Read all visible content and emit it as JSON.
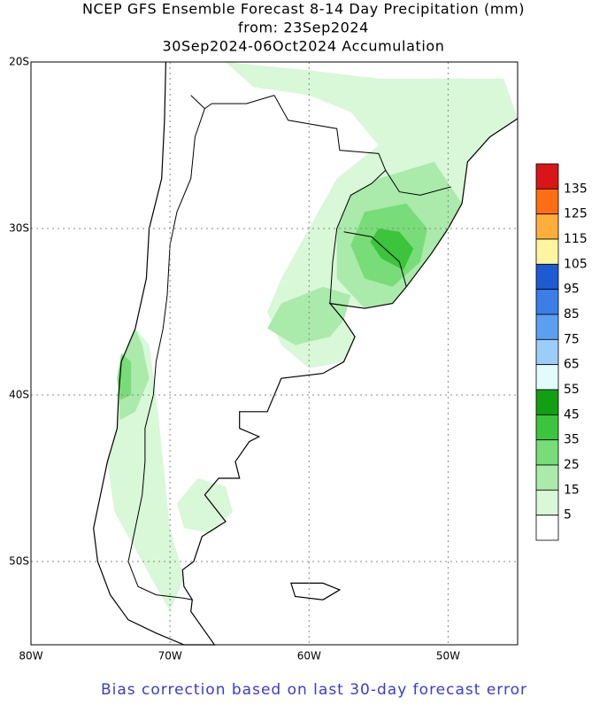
{
  "map": {
    "title_lines": [
      "NCEP GFS Ensemble Forecast 8-14 Day Precipitation (mm)",
      "from: 23Sep2024",
      "30Sep2024-06Oct2024 Accumulation"
    ],
    "lonlim": [
      -80,
      -45
    ],
    "latlim": [
      -55,
      -20
    ],
    "lat_ticks": [
      {
        "value": -20,
        "label": "20S"
      },
      {
        "value": -30,
        "label": "30S"
      },
      {
        "value": -40,
        "label": "40S"
      },
      {
        "value": -50,
        "label": "50S"
      }
    ],
    "lon_ticks": [
      {
        "value": -80,
        "label": "80W"
      },
      {
        "value": -70,
        "label": "70W"
      },
      {
        "value": -60,
        "label": "60W"
      },
      {
        "value": -50,
        "label": "50W"
      }
    ],
    "grid": true,
    "colorbar": {
      "levels": [
        135,
        125,
        115,
        105,
        95,
        85,
        75,
        65,
        55,
        45,
        35,
        25,
        15,
        5
      ],
      "colors": [
        "#d8161a",
        "#ff6e14",
        "#ffae3c",
        "#fff5a0",
        "#1e5ad2",
        "#3a7ee6",
        "#5c9ff0",
        "#9ccdf8",
        "#e2fbfb",
        "#12a012",
        "#3cc43c",
        "#78dc78",
        "#aaeaaa",
        "#d8f8d8",
        "#ffffff"
      ]
    },
    "footer": "Bias correction based on last 30-day forecast error"
  }
}
